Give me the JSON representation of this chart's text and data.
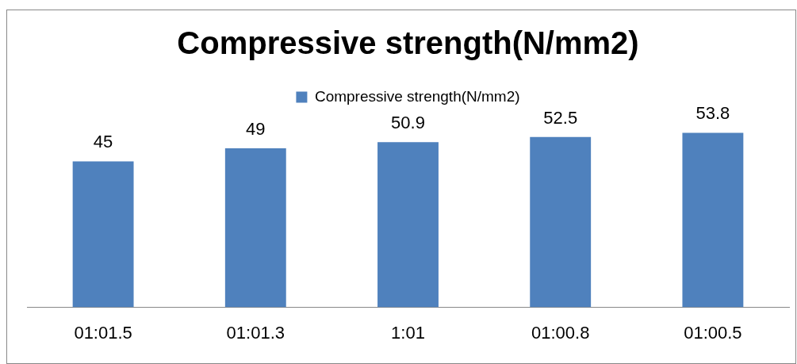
{
  "chart_data": {
    "type": "bar",
    "title": "Compressive strength(N/mm2)",
    "categories": [
      "01:01.5",
      "01:01.3",
      "1:01",
      "01:00.8",
      "01:00.5"
    ],
    "series": [
      {
        "name": "Compressive strength(N/mm2)",
        "color": "#4f81bd",
        "values": [
          45,
          49,
          50.9,
          52.5,
          53.8
        ]
      }
    ],
    "tick_labels": "x",
    "data_labels": true,
    "legend": "top",
    "grid": false
  }
}
